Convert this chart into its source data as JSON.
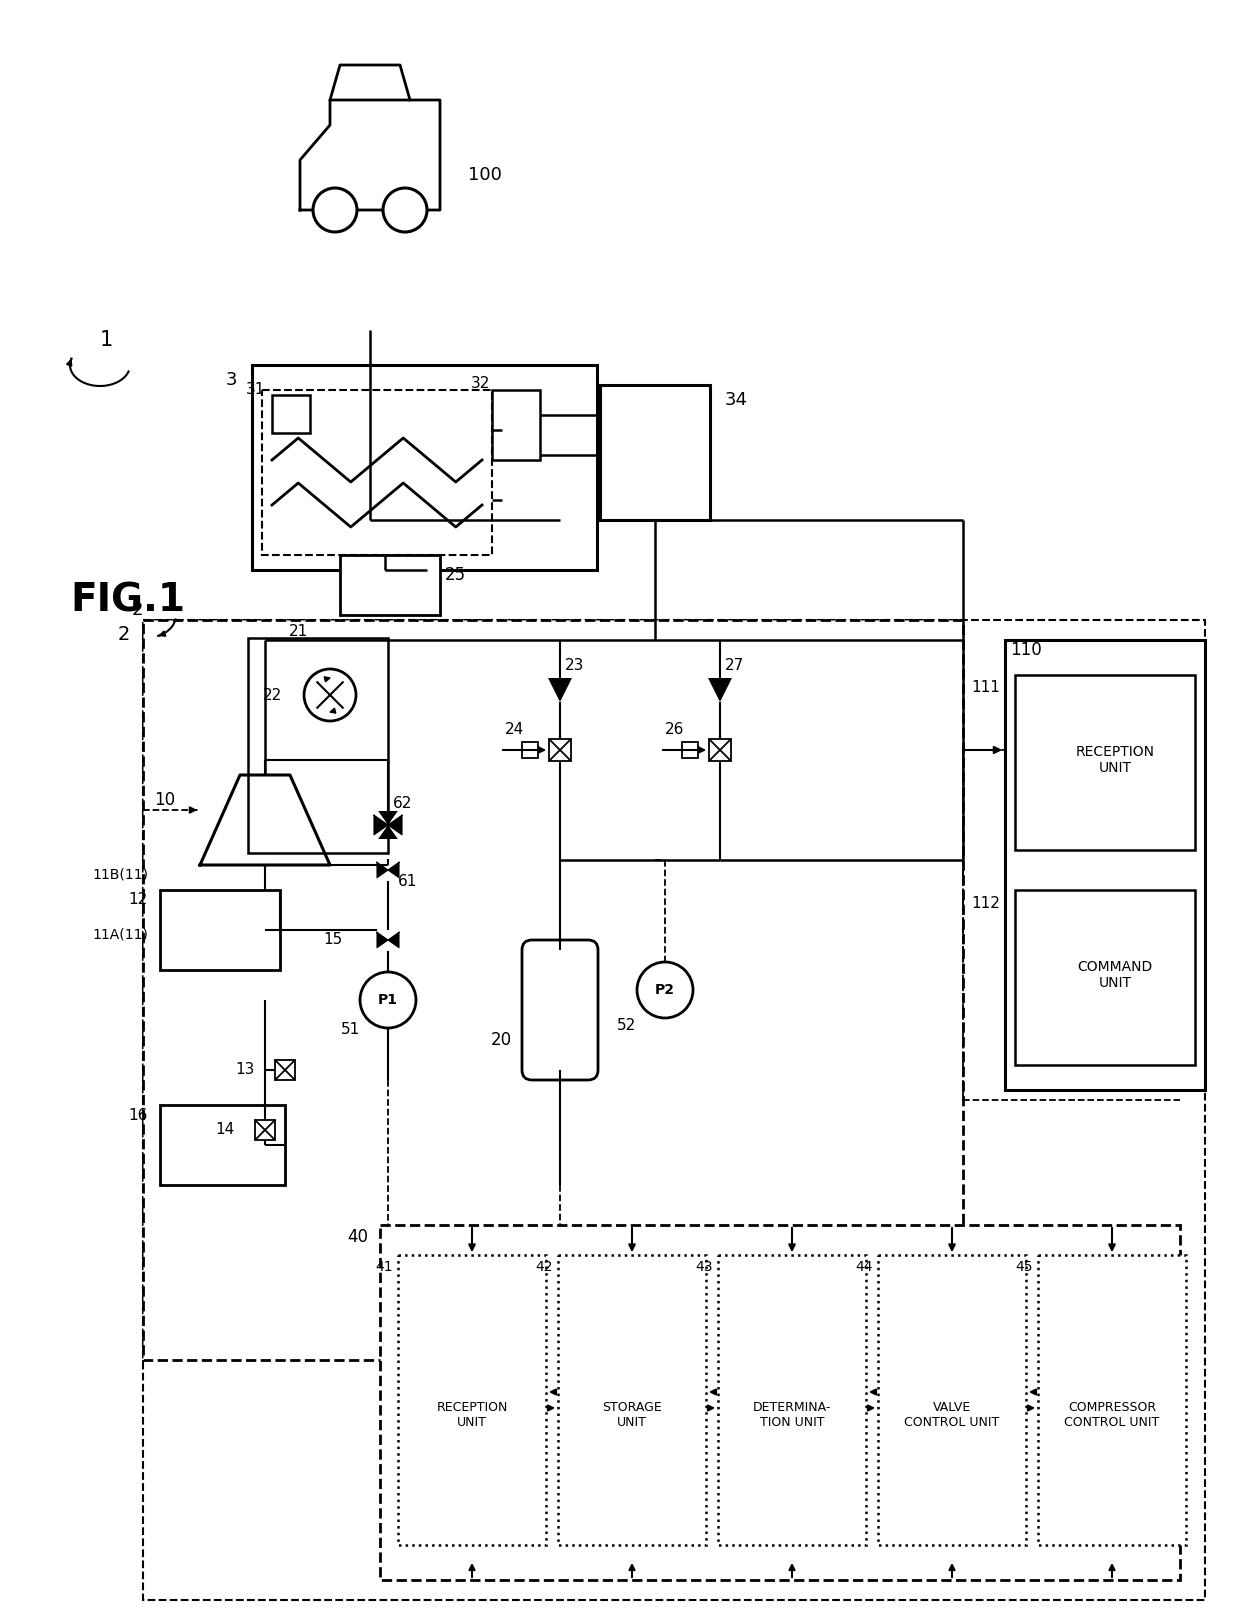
{
  "bg": "#ffffff",
  "lc": "#000000",
  "fig_label": "FIG.1",
  "ref1": "1",
  "components": {
    "car_label": "100",
    "ref_2": "2",
    "ref_3": "3",
    "ref_10": "10",
    "ref_12": "12",
    "ref_13": "13",
    "ref_14": "14",
    "ref_15": "15",
    "ref_16": "16",
    "ref_20": "20",
    "ref_21": "21",
    "ref_22": "22",
    "ref_23": "23",
    "ref_24": "24",
    "ref_25": "25",
    "ref_26": "26",
    "ref_27": "27",
    "ref_31": "31",
    "ref_32": "32",
    "ref_34": "34",
    "ref_40": "40",
    "ref_41": "41",
    "ref_42": "42",
    "ref_43": "43",
    "ref_44": "44",
    "ref_45": "45",
    "ref_51": "51",
    "ref_52": "52",
    "ref_61": "61",
    "ref_62": "62",
    "ref_110": "110",
    "ref_111": "111",
    "ref_112": "112",
    "ref_11A": "11A(11)",
    "ref_11B": "11B(11)",
    "txt_recv": "RECEPTION\nUNIT",
    "txt_store": "STORAGE\nUNIT",
    "txt_det": "DETERMINA-\nTION UNIT",
    "txt_valve": "VALVE\nCONTROL UNIT",
    "txt_comp_ctrl": "COMPRESSOR\nCONTROL UNIT",
    "txt_recv2": "RECEPTION\nUNIT",
    "txt_cmd": "COMMAND\nUNIT"
  }
}
